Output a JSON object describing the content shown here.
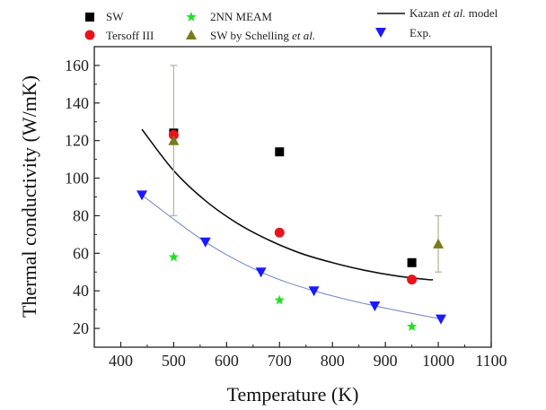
{
  "chart_data": {
    "type": "scatter",
    "xlabel": "Temperature (K)",
    "ylabel": "Thermal conductivity (W/mK)",
    "xlim": [
      350,
      1100
    ],
    "ylim": [
      10,
      170
    ],
    "xticks": [
      400,
      500,
      600,
      700,
      800,
      900,
      1000,
      1100
    ],
    "yticks": [
      20,
      40,
      60,
      80,
      100,
      120,
      140,
      160
    ],
    "grid": false,
    "legend_position": "top",
    "series": [
      {
        "name": "SW",
        "kind": "points",
        "marker": "square",
        "color": "#000000",
        "x": [
          500,
          700,
          950
        ],
        "y": [
          124,
          114,
          55
        ],
        "err": [
          [
            0,
            0
          ],
          [
            0,
            0
          ],
          [
            0,
            0
          ]
        ]
      },
      {
        "name": "Tersoff III",
        "kind": "points",
        "marker": "circle",
        "color": "#e8141c",
        "x": [
          500,
          700,
          950
        ],
        "y": [
          123,
          71,
          46
        ],
        "err": [
          [
            0,
            0
          ],
          [
            0,
            0
          ],
          [
            0,
            0
          ]
        ]
      },
      {
        "name": "2NN MEAM",
        "kind": "points",
        "marker": "star",
        "color": "#1fe01f",
        "x": [
          500,
          700,
          950
        ],
        "y": [
          58,
          35,
          21
        ],
        "err": [
          [
            0,
            0
          ],
          [
            0,
            0
          ],
          [
            0,
            0
          ]
        ]
      },
      {
        "name": "SW by Schelling et al.",
        "name_parts": [
          "SW by Schelling ",
          "et al.",
          ""
        ],
        "kind": "points",
        "marker": "triangle-up",
        "color": "#7a7a1e",
        "x": [
          500,
          1000
        ],
        "y": [
          120,
          65
        ],
        "err": [
          [
            40,
            40
          ],
          [
            15,
            15
          ]
        ]
      },
      {
        "name": "Kazan et al. model",
        "name_parts": [
          "Kazan ",
          "et al.",
          " model"
        ],
        "kind": "line",
        "color": "#000000",
        "x": [
          440,
          500,
          560,
          620,
          680,
          740,
          800,
          860,
          920,
          980,
          990
        ],
        "y": [
          126,
          104,
          88,
          76,
          67,
          60,
          55,
          51,
          48,
          46,
          46
        ]
      },
      {
        "name": "Exp.",
        "kind": "line+points",
        "marker": "triangle-down",
        "color": "#1a1aff",
        "x": [
          440,
          560,
          665,
          765,
          880,
          1005
        ],
        "y": [
          91,
          66,
          50,
          40,
          32,
          25
        ]
      }
    ]
  }
}
